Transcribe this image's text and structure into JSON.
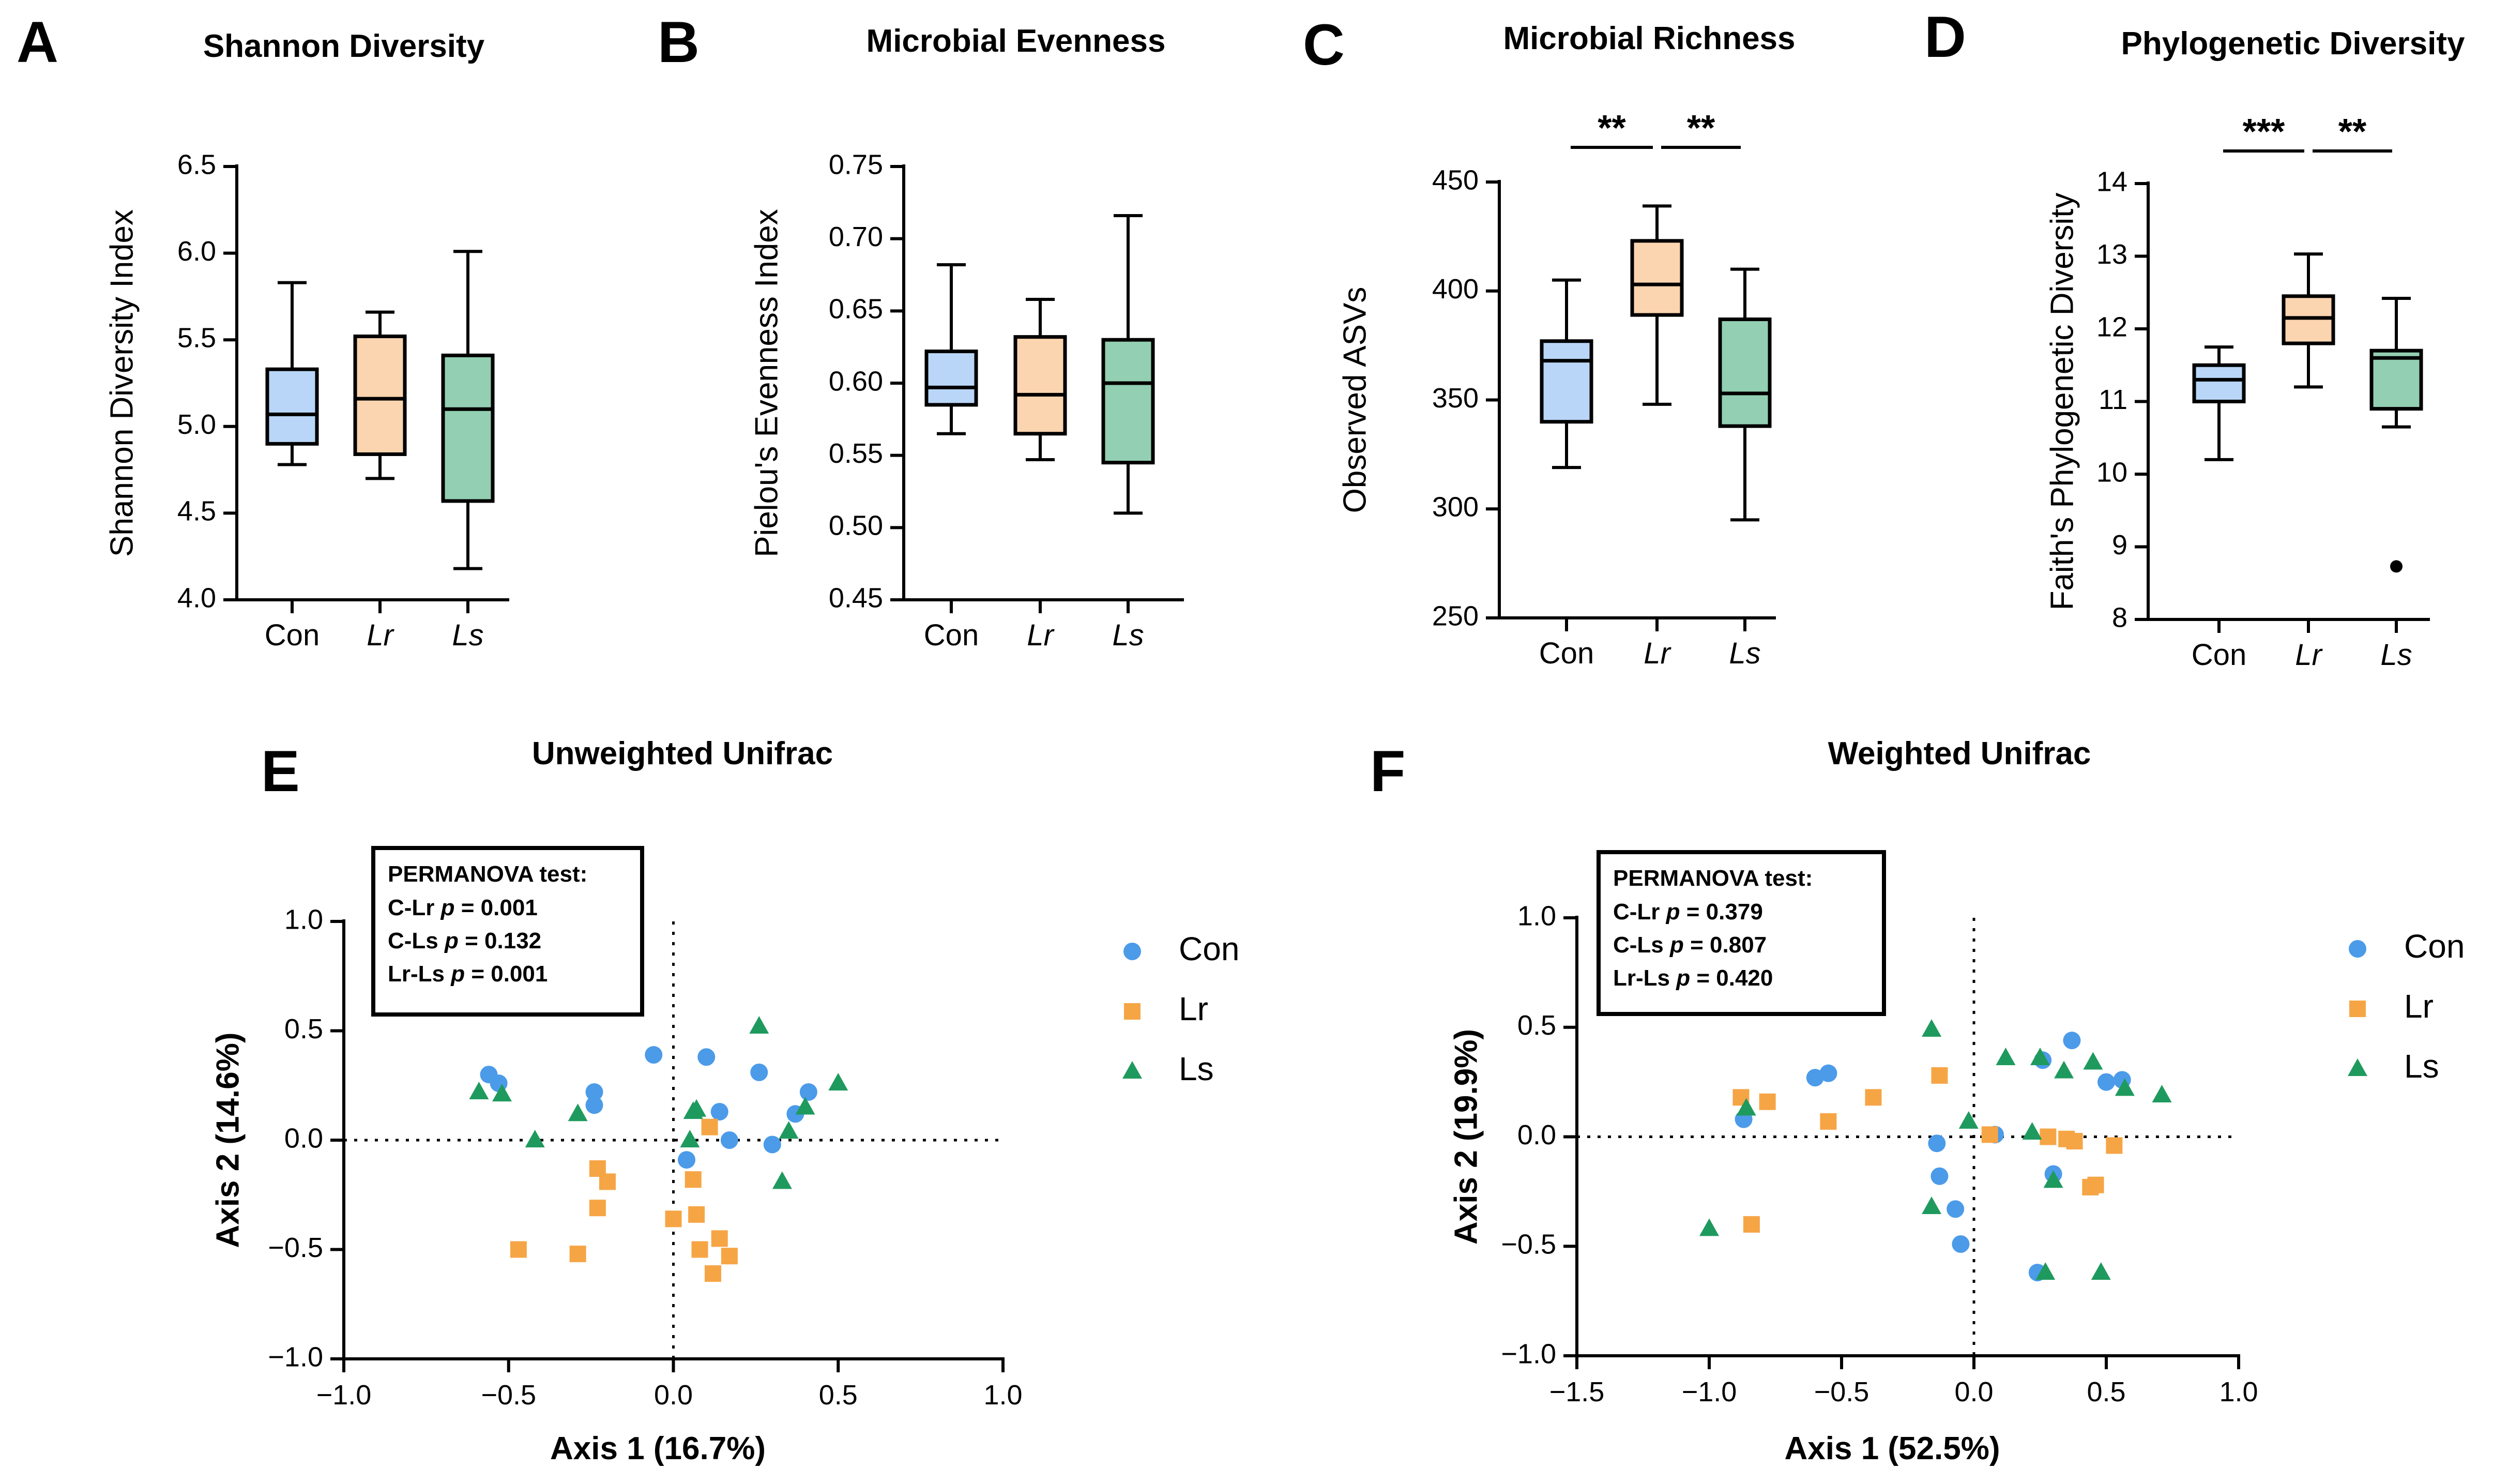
{
  "colors": {
    "con": "#b9d6f8",
    "lr": "#fbd4b0",
    "ls": "#93cfb2",
    "scatter_con": "#4b9be9",
    "scatter_lr": "#f6a545",
    "scatter_ls": "#1f9a5e"
  },
  "chart_data": [
    {
      "type": "box",
      "panel": "A",
      "title": "Shannon Diversity",
      "ylabel": "Shannon Diversity Index",
      "ylim": [
        4.0,
        6.5
      ],
      "yticks": [
        4.0,
        4.5,
        5.0,
        5.5,
        6.0,
        6.5
      ],
      "tick_decimals": 1,
      "categories": [
        "Con",
        "Lr",
        "Ls"
      ],
      "boxes": [
        {
          "min": 4.78,
          "q1": 4.9,
          "median": 5.07,
          "q3": 5.33,
          "max": 5.83
        },
        {
          "min": 4.7,
          "q1": 4.84,
          "median": 5.16,
          "q3": 5.52,
          "max": 5.66
        },
        {
          "min": 4.18,
          "q1": 4.57,
          "median": 5.1,
          "q3": 5.41,
          "max": 6.01
        }
      ],
      "outliers": [],
      "significance": []
    },
    {
      "type": "box",
      "panel": "B",
      "title": "Microbial Evenness",
      "ylabel": "Pielou's Evenness Index",
      "ylim": [
        0.45,
        0.75
      ],
      "yticks": [
        0.45,
        0.5,
        0.55,
        0.6,
        0.65,
        0.7,
        0.75
      ],
      "tick_decimals": 2,
      "categories": [
        "Con",
        "Lr",
        "Ls"
      ],
      "boxes": [
        {
          "min": 0.565,
          "q1": 0.585,
          "median": 0.597,
          "q3": 0.622,
          "max": 0.682
        },
        {
          "min": 0.547,
          "q1": 0.565,
          "median": 0.592,
          "q3": 0.632,
          "max": 0.658
        },
        {
          "min": 0.51,
          "q1": 0.545,
          "median": 0.6,
          "q3": 0.63,
          "max": 0.716
        }
      ],
      "outliers": [],
      "significance": []
    },
    {
      "type": "box",
      "panel": "C",
      "title": "Microbial Richness",
      "ylabel": "Observed ASVs",
      "ylim": [
        250,
        450
      ],
      "yticks": [
        250,
        300,
        350,
        400,
        450
      ],
      "tick_decimals": 0,
      "categories": [
        "Con",
        "Lr",
        "Ls"
      ],
      "boxes": [
        {
          "min": 319,
          "q1": 340,
          "median": 368,
          "q3": 377,
          "max": 405
        },
        {
          "min": 348,
          "q1": 389,
          "median": 403,
          "q3": 423,
          "max": 439
        },
        {
          "min": 295,
          "q1": 338,
          "median": 353,
          "q3": 387,
          "max": 410
        }
      ],
      "outliers": [],
      "significance": [
        {
          "from": 0,
          "to": 1,
          "label": "**"
        },
        {
          "from": 1,
          "to": 2,
          "label": "**"
        }
      ]
    },
    {
      "type": "box",
      "panel": "D",
      "title": "Phylogenetic Diversity",
      "ylabel": "Faith's Phylogenetic Diversity",
      "ylim": [
        8,
        14
      ],
      "yticks": [
        8,
        9,
        10,
        11,
        12,
        13,
        14
      ],
      "tick_decimals": 0,
      "categories": [
        "Con",
        "Lr",
        "Ls"
      ],
      "boxes": [
        {
          "min": 10.2,
          "q1": 11.0,
          "median": 11.3,
          "q3": 11.5,
          "max": 11.75
        },
        {
          "min": 11.2,
          "q1": 11.8,
          "median": 12.15,
          "q3": 12.45,
          "max": 13.03
        },
        {
          "min": 10.65,
          "q1": 10.9,
          "median": 11.6,
          "q3": 11.7,
          "max": 12.42
        }
      ],
      "outliers": [
        {
          "group": 2,
          "value": 8.73
        }
      ],
      "significance": [
        {
          "from": 0,
          "to": 1,
          "label": "***"
        },
        {
          "from": 1,
          "to": 2,
          "label": "**"
        }
      ]
    },
    {
      "type": "scatter",
      "panel": "E",
      "title": "Unweighted Unifrac",
      "xlabel": "Axis 1 (16.7%)",
      "ylabel": "Axis 2 (14.6%)",
      "xlim": [
        -1.0,
        1.0
      ],
      "ylim": [
        -1.0,
        1.0
      ],
      "xticks": [
        -1.0,
        -0.5,
        0.0,
        0.5,
        1.0
      ],
      "yticks": [
        -1.0,
        -0.5,
        0.0,
        0.5,
        1.0
      ],
      "legend": [
        "Con",
        "Lr",
        "Ls"
      ],
      "stats": {
        "heading": "PERMANOVA test:",
        "rows": [
          {
            "label": "C-Lr",
            "value": "= 0.001"
          },
          {
            "label": "C-Ls",
            "value": "= 0.132"
          },
          {
            "label": "Lr-Ls",
            "value": "= 0.001"
          }
        ]
      },
      "series": [
        {
          "name": "Con",
          "points": [
            [
              -0.56,
              0.3
            ],
            [
              -0.53,
              0.26
            ],
            [
              -0.24,
              0.22
            ],
            [
              -0.24,
              0.16
            ],
            [
              -0.06,
              0.39
            ],
            [
              0.1,
              0.38
            ],
            [
              0.14,
              0.13
            ],
            [
              0.17,
              0.0
            ],
            [
              0.26,
              0.31
            ],
            [
              0.3,
              -0.02
            ],
            [
              0.37,
              0.12
            ],
            [
              0.41,
              0.22
            ],
            [
              0.04,
              -0.09
            ]
          ]
        },
        {
          "name": "Lr",
          "points": [
            [
              -0.47,
              -0.5
            ],
            [
              -0.29,
              -0.52
            ],
            [
              -0.23,
              -0.13
            ],
            [
              -0.2,
              -0.19
            ],
            [
              -0.23,
              -0.31
            ],
            [
              0.0,
              -0.36
            ],
            [
              0.06,
              -0.18
            ],
            [
              0.07,
              -0.34
            ],
            [
              0.08,
              -0.5
            ],
            [
              0.12,
              -0.61
            ],
            [
              0.14,
              -0.45
            ],
            [
              0.17,
              -0.53
            ],
            [
              0.11,
              0.06
            ]
          ]
        },
        {
          "name": "Ls",
          "points": [
            [
              -0.59,
              0.22
            ],
            [
              -0.52,
              0.21
            ],
            [
              -0.42,
              0.0
            ],
            [
              -0.29,
              0.12
            ],
            [
              0.05,
              0.0
            ],
            [
              0.06,
              0.13
            ],
            [
              0.07,
              0.14
            ],
            [
              0.26,
              0.52
            ],
            [
              0.33,
              -0.19
            ],
            [
              0.35,
              0.04
            ],
            [
              0.4,
              0.15
            ],
            [
              0.5,
              0.26
            ]
          ]
        }
      ]
    },
    {
      "type": "scatter",
      "panel": "F",
      "title": "Weighted Unifrac",
      "xlabel": "Axis 1 (52.5%)",
      "ylabel": "Axis 2 (19.9%)",
      "xlim": [
        -1.5,
        1.0
      ],
      "ylim": [
        -1.0,
        1.0
      ],
      "xticks": [
        -1.5,
        -1.0,
        -0.5,
        0.0,
        0.5,
        1.0
      ],
      "yticks": [
        -1.0,
        -0.5,
        0.0,
        0.5,
        1.0
      ],
      "legend": [
        "Con",
        "Lr",
        "Ls"
      ],
      "stats": {
        "heading": "PERMANOVA test:",
        "rows": [
          {
            "label": "C-Lr",
            "value": "= 0.379"
          },
          {
            "label": "C-Ls",
            "value": "= 0.807"
          },
          {
            "label": "Lr-Ls",
            "value": "= 0.420"
          }
        ]
      },
      "series": [
        {
          "name": "Con",
          "points": [
            [
              -0.87,
              0.08
            ],
            [
              -0.6,
              0.27
            ],
            [
              -0.55,
              0.29
            ],
            [
              -0.14,
              -0.03
            ],
            [
              -0.13,
              -0.18
            ],
            [
              -0.07,
              -0.33
            ],
            [
              -0.05,
              -0.49
            ],
            [
              0.08,
              0.01
            ],
            [
              0.24,
              -0.62
            ],
            [
              0.26,
              0.35
            ],
            [
              0.3,
              -0.17
            ],
            [
              0.37,
              0.44
            ],
            [
              0.5,
              0.25
            ],
            [
              0.56,
              0.26
            ]
          ]
        },
        {
          "name": "Lr",
          "points": [
            [
              -0.88,
              0.18
            ],
            [
              -0.84,
              -0.4
            ],
            [
              -0.78,
              0.16
            ],
            [
              -0.55,
              0.07
            ],
            [
              -0.38,
              0.18
            ],
            [
              -0.13,
              0.28
            ],
            [
              0.06,
              0.01
            ],
            [
              0.28,
              0.0
            ],
            [
              0.35,
              -0.01
            ],
            [
              0.38,
              -0.02
            ],
            [
              0.44,
              -0.23
            ],
            [
              0.46,
              -0.22
            ],
            [
              0.53,
              -0.04
            ]
          ]
        },
        {
          "name": "Ls",
          "points": [
            [
              -1.0,
              -0.42
            ],
            [
              -0.86,
              0.13
            ],
            [
              -0.16,
              0.49
            ],
            [
              -0.16,
              -0.32
            ],
            [
              -0.02,
              0.07
            ],
            [
              0.12,
              0.36
            ],
            [
              0.22,
              0.02
            ],
            [
              0.25,
              0.36
            ],
            [
              0.27,
              -0.62
            ],
            [
              0.3,
              -0.2
            ],
            [
              0.34,
              0.3
            ],
            [
              0.45,
              0.34
            ],
            [
              0.48,
              -0.62
            ],
            [
              0.57,
              0.22
            ],
            [
              0.71,
              0.19
            ]
          ]
        }
      ]
    }
  ]
}
